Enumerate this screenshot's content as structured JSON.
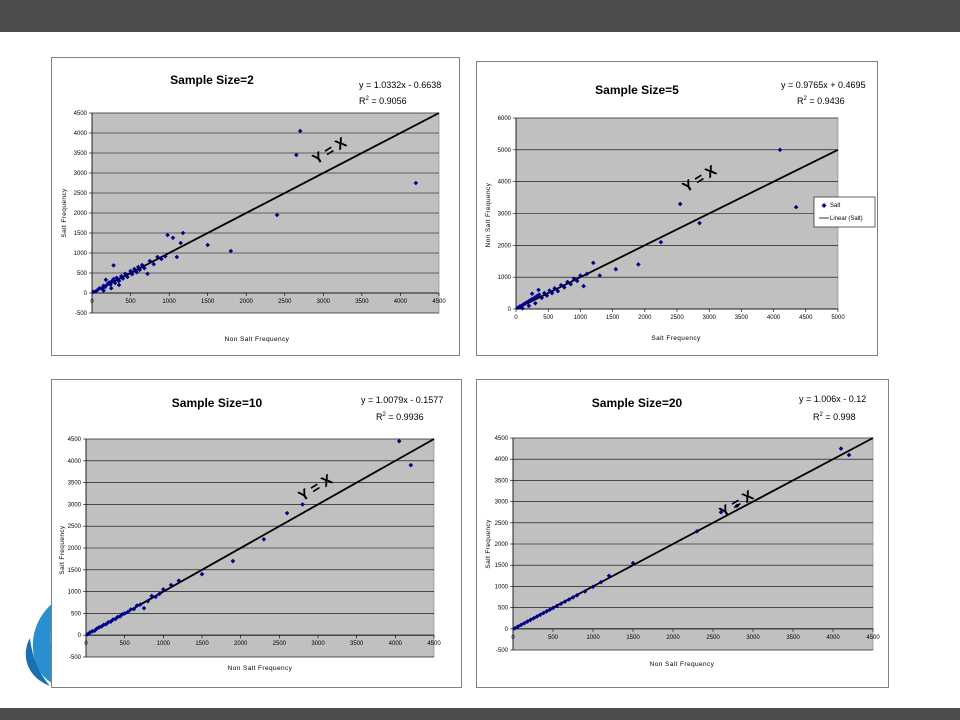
{
  "colors": {
    "bar": "#4d4d4d",
    "plot_bg": "#c0c0c0",
    "marker": "#00008b",
    "line": "#000000"
  },
  "logo": {
    "icon": "petal-logo-icon"
  },
  "chart_data": [
    {
      "type": "scatter",
      "title": "Sample Size=2",
      "equation": "y = 1.0332x - 0.6638",
      "r2_prefix": "R",
      "r2_exp": "2",
      "r2_value": " = 0.9056",
      "xlabel": "Non Salt Frequency",
      "ylabel": "Salt Frequency",
      "xlim": [
        0,
        4500
      ],
      "ylim": [
        -500,
        4500
      ],
      "xticks": [
        0,
        500,
        1000,
        1500,
        2000,
        2500,
        3000,
        3500,
        4000,
        4500
      ],
      "yticks": [
        -500,
        0,
        500,
        1000,
        1500,
        2000,
        2500,
        3000,
        3500,
        4000,
        4500
      ],
      "grid": true,
      "annotation": "Y = X",
      "series": [
        {
          "points": [
            [
              20,
              30
            ],
            [
              50,
              40
            ],
            [
              80,
              90
            ],
            [
              100,
              120
            ],
            [
              130,
              110
            ],
            [
              150,
              180
            ],
            [
              170,
              150
            ],
            [
              200,
              220
            ],
            [
              220,
              260
            ],
            [
              240,
              210
            ],
            [
              260,
              300
            ],
            [
              280,
              350
            ],
            [
              300,
              250
            ],
            [
              320,
              380
            ],
            [
              350,
              300
            ],
            [
              380,
              420
            ],
            [
              400,
              360
            ],
            [
              430,
              480
            ],
            [
              460,
              400
            ],
            [
              500,
              550
            ],
            [
              520,
              470
            ],
            [
              550,
              600
            ],
            [
              580,
              520
            ],
            [
              600,
              650
            ],
            [
              620,
              580
            ],
            [
              650,
              700
            ],
            [
              680,
              620
            ],
            [
              720,
              480
            ],
            [
              750,
              800
            ],
            [
              800,
              720
            ],
            [
              850,
              900
            ],
            [
              900,
              850
            ],
            [
              950,
              920
            ],
            [
              980,
              1450
            ],
            [
              1050,
              1380
            ],
            [
              1100,
              900
            ],
            [
              1150,
              1250
            ],
            [
              1180,
              1500
            ],
            [
              1500,
              1200
            ],
            [
              1800,
              1050
            ],
            [
              2400,
              1950
            ],
            [
              2650,
              3450
            ],
            [
              2700,
              4050
            ],
            [
              4200,
              2750
            ],
            [
              150,
              60
            ],
            [
              250,
              120
            ],
            [
              350,
              200
            ],
            [
              180,
              330
            ],
            [
              280,
              690
            ]
          ]
        }
      ]
    },
    {
      "type": "scatter",
      "title": "Sample Size=5",
      "equation": "y = 0.9765x + 0.4695",
      "r2_prefix": "R",
      "r2_exp": "2",
      "r2_value": " = 0.9436",
      "xlabel": "Salt Frequency",
      "ylabel": "Non Salt Frequency",
      "xlim": [
        0,
        5000
      ],
      "ylim": [
        0,
        6000
      ],
      "xticks": [
        0,
        500,
        1000,
        1500,
        2000,
        2500,
        3000,
        3500,
        4000,
        4500,
        5000
      ],
      "yticks": [
        0,
        1000,
        2000,
        3000,
        4000,
        5000,
        6000
      ],
      "grid": true,
      "annotation": "Y = X",
      "legend": {
        "position": "right",
        "items": [
          "Salt",
          "Linear (Salt)"
        ]
      },
      "series": [
        {
          "name": "Salt",
          "points": [
            [
              30,
              40
            ],
            [
              60,
              80
            ],
            [
              90,
              110
            ],
            [
              120,
              150
            ],
            [
              150,
              190
            ],
            [
              180,
              220
            ],
            [
              210,
              260
            ],
            [
              240,
              300
            ],
            [
              270,
              330
            ],
            [
              300,
              370
            ],
            [
              330,
              410
            ],
            [
              360,
              450
            ],
            [
              400,
              350
            ],
            [
              440,
              500
            ],
            [
              480,
              420
            ],
            [
              520,
              580
            ],
            [
              560,
              500
            ],
            [
              600,
              650
            ],
            [
              650,
              560
            ],
            [
              700,
              750
            ],
            [
              750,
              680
            ],
            [
              800,
              850
            ],
            [
              850,
              780
            ],
            [
              900,
              950
            ],
            [
              950,
              880
            ],
            [
              1000,
              1050
            ],
            [
              1050,
              720
            ],
            [
              1100,
              1100
            ],
            [
              1200,
              1450
            ],
            [
              1300,
              1050
            ],
            [
              1550,
              1250
            ],
            [
              1900,
              1400
            ],
            [
              2250,
              2100
            ],
            [
              2550,
              3300
            ],
            [
              2850,
              2700
            ],
            [
              4100,
              5000
            ],
            [
              4350,
              3200
            ],
            [
              100,
              20
            ],
            [
              200,
              100
            ],
            [
              300,
              180
            ],
            [
              350,
              600
            ],
            [
              250,
              480
            ]
          ]
        }
      ]
    },
    {
      "type": "scatter",
      "title": "Sample Size=10",
      "equation": "y = 1.0079x - 0.1577",
      "r2_prefix": "R",
      "r2_exp": "2",
      "r2_value": " = 0.9936",
      "xlabel": "Non Salt Frequency",
      "ylabel": "Salt Frequency",
      "xlim": [
        0,
        4500
      ],
      "ylim": [
        -500,
        4500
      ],
      "xticks": [
        0,
        500,
        1000,
        1500,
        2000,
        2500,
        3000,
        3500,
        4000,
        4500
      ],
      "yticks": [
        -500,
        0,
        500,
        1000,
        1500,
        2000,
        2500,
        3000,
        3500,
        4000,
        4500
      ],
      "grid": true,
      "annotation": "Y = X",
      "series": [
        {
          "points": [
            [
              20,
              20
            ],
            [
              50,
              60
            ],
            [
              80,
              90
            ],
            [
              110,
              100
            ],
            [
              140,
              150
            ],
            [
              170,
              180
            ],
            [
              200,
              200
            ],
            [
              230,
              240
            ],
            [
              260,
              250
            ],
            [
              290,
              300
            ],
            [
              320,
              310
            ],
            [
              350,
              360
            ],
            [
              380,
              370
            ],
            [
              410,
              420
            ],
            [
              440,
              430
            ],
            [
              470,
              480
            ],
            [
              500,
              500
            ],
            [
              540,
              530
            ],
            [
              580,
              590
            ],
            [
              620,
              600
            ],
            [
              660,
              680
            ],
            [
              700,
              700
            ],
            [
              750,
              620
            ],
            [
              800,
              780
            ],
            [
              850,
              900
            ],
            [
              900,
              880
            ],
            [
              950,
              950
            ],
            [
              1000,
              1050
            ],
            [
              1100,
              1150
            ],
            [
              1200,
              1250
            ],
            [
              1500,
              1400
            ],
            [
              1900,
              1700
            ],
            [
              2300,
              2200
            ],
            [
              2600,
              2800
            ],
            [
              2800,
              3000
            ],
            [
              4050,
              4450
            ],
            [
              4200,
              3900
            ]
          ]
        }
      ]
    },
    {
      "type": "scatter",
      "title": "Sample Size=20",
      "equation": "y = 1.006x - 0.12",
      "r2_prefix": "R",
      "r2_exp": "2",
      "r2_value": " = 0.998",
      "xlabel": "Non Salt Frequency",
      "ylabel": "Salt Frequency",
      "xlim": [
        0,
        4500
      ],
      "ylim": [
        -500,
        4500
      ],
      "xticks": [
        0,
        500,
        1000,
        1500,
        2000,
        2500,
        3000,
        3500,
        4000,
        4500
      ],
      "yticks": [
        -500,
        0,
        500,
        1000,
        1500,
        2000,
        2500,
        3000,
        3500,
        4000,
        4500
      ],
      "grid": true,
      "annotation": "Y = X",
      "series": [
        {
          "points": [
            [
              20,
              10
            ],
            [
              60,
              50
            ],
            [
              100,
              90
            ],
            [
              140,
              130
            ],
            [
              180,
              170
            ],
            [
              220,
              210
            ],
            [
              260,
              250
            ],
            [
              300,
              290
            ],
            [
              340,
              330
            ],
            [
              380,
              370
            ],
            [
              420,
              410
            ],
            [
              460,
              450
            ],
            [
              500,
              490
            ],
            [
              550,
              540
            ],
            [
              600,
              590
            ],
            [
              650,
              640
            ],
            [
              700,
              690
            ],
            [
              750,
              740
            ],
            [
              800,
              790
            ],
            [
              900,
              880
            ],
            [
              1000,
              990
            ],
            [
              1100,
              1100
            ],
            [
              1200,
              1250
            ],
            [
              1500,
              1550
            ],
            [
              2300,
              2300
            ],
            [
              2600,
              2750
            ],
            [
              2800,
              2900
            ],
            [
              4100,
              4250
            ],
            [
              4200,
              4100
            ]
          ]
        }
      ]
    }
  ]
}
